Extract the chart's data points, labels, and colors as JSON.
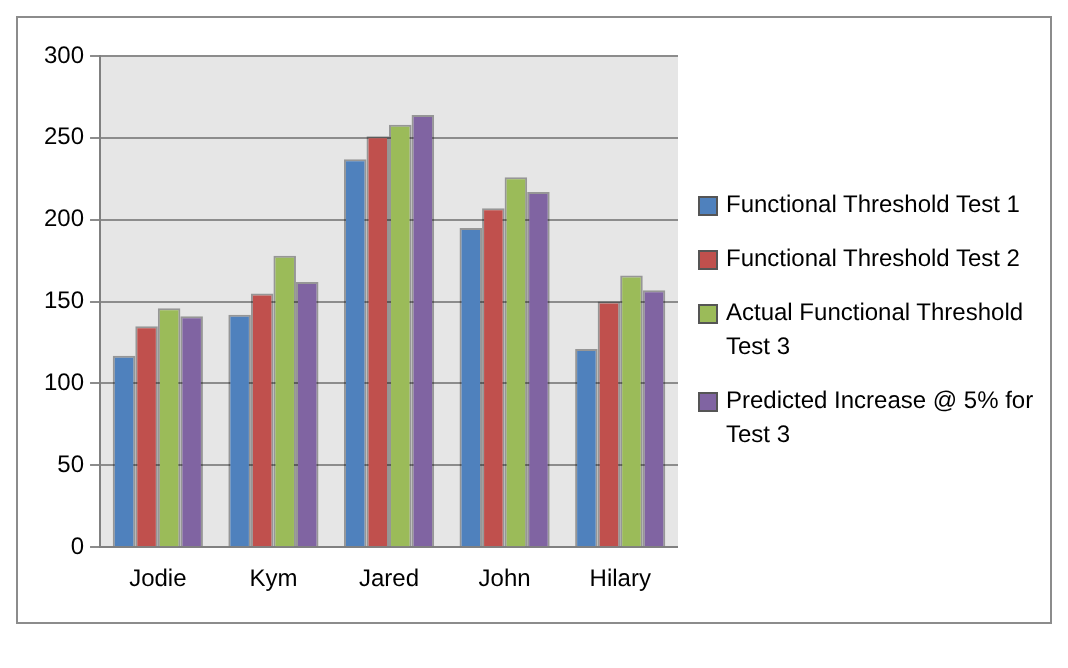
{
  "chart_data": {
    "type": "bar",
    "categories": [
      "Jodie",
      "Kym",
      "Jared",
      "John",
      "Hilary"
    ],
    "series": [
      {
        "name": "Functional Threshold Test 1",
        "color": "#4f81bd",
        "values": [
          117,
          142,
          237,
          195,
          121
        ]
      },
      {
        "name": "Functional Threshold Test 2",
        "color": "#c0504d",
        "values": [
          135,
          155,
          251,
          207,
          150
        ]
      },
      {
        "name": "Actual Functional Threshold Test 3",
        "color": "#9bbb59",
        "values": [
          146,
          178,
          258,
          226,
          166
        ]
      },
      {
        "name": "Predicted Increase @ 5% for Test 3",
        "color": "#8064a2",
        "values": [
          141,
          162,
          264,
          217,
          157
        ]
      }
    ],
    "ylim": [
      0,
      300
    ],
    "yticks": [
      0,
      50,
      100,
      150,
      200,
      250,
      300
    ],
    "grid": "y",
    "legend": "right"
  }
}
